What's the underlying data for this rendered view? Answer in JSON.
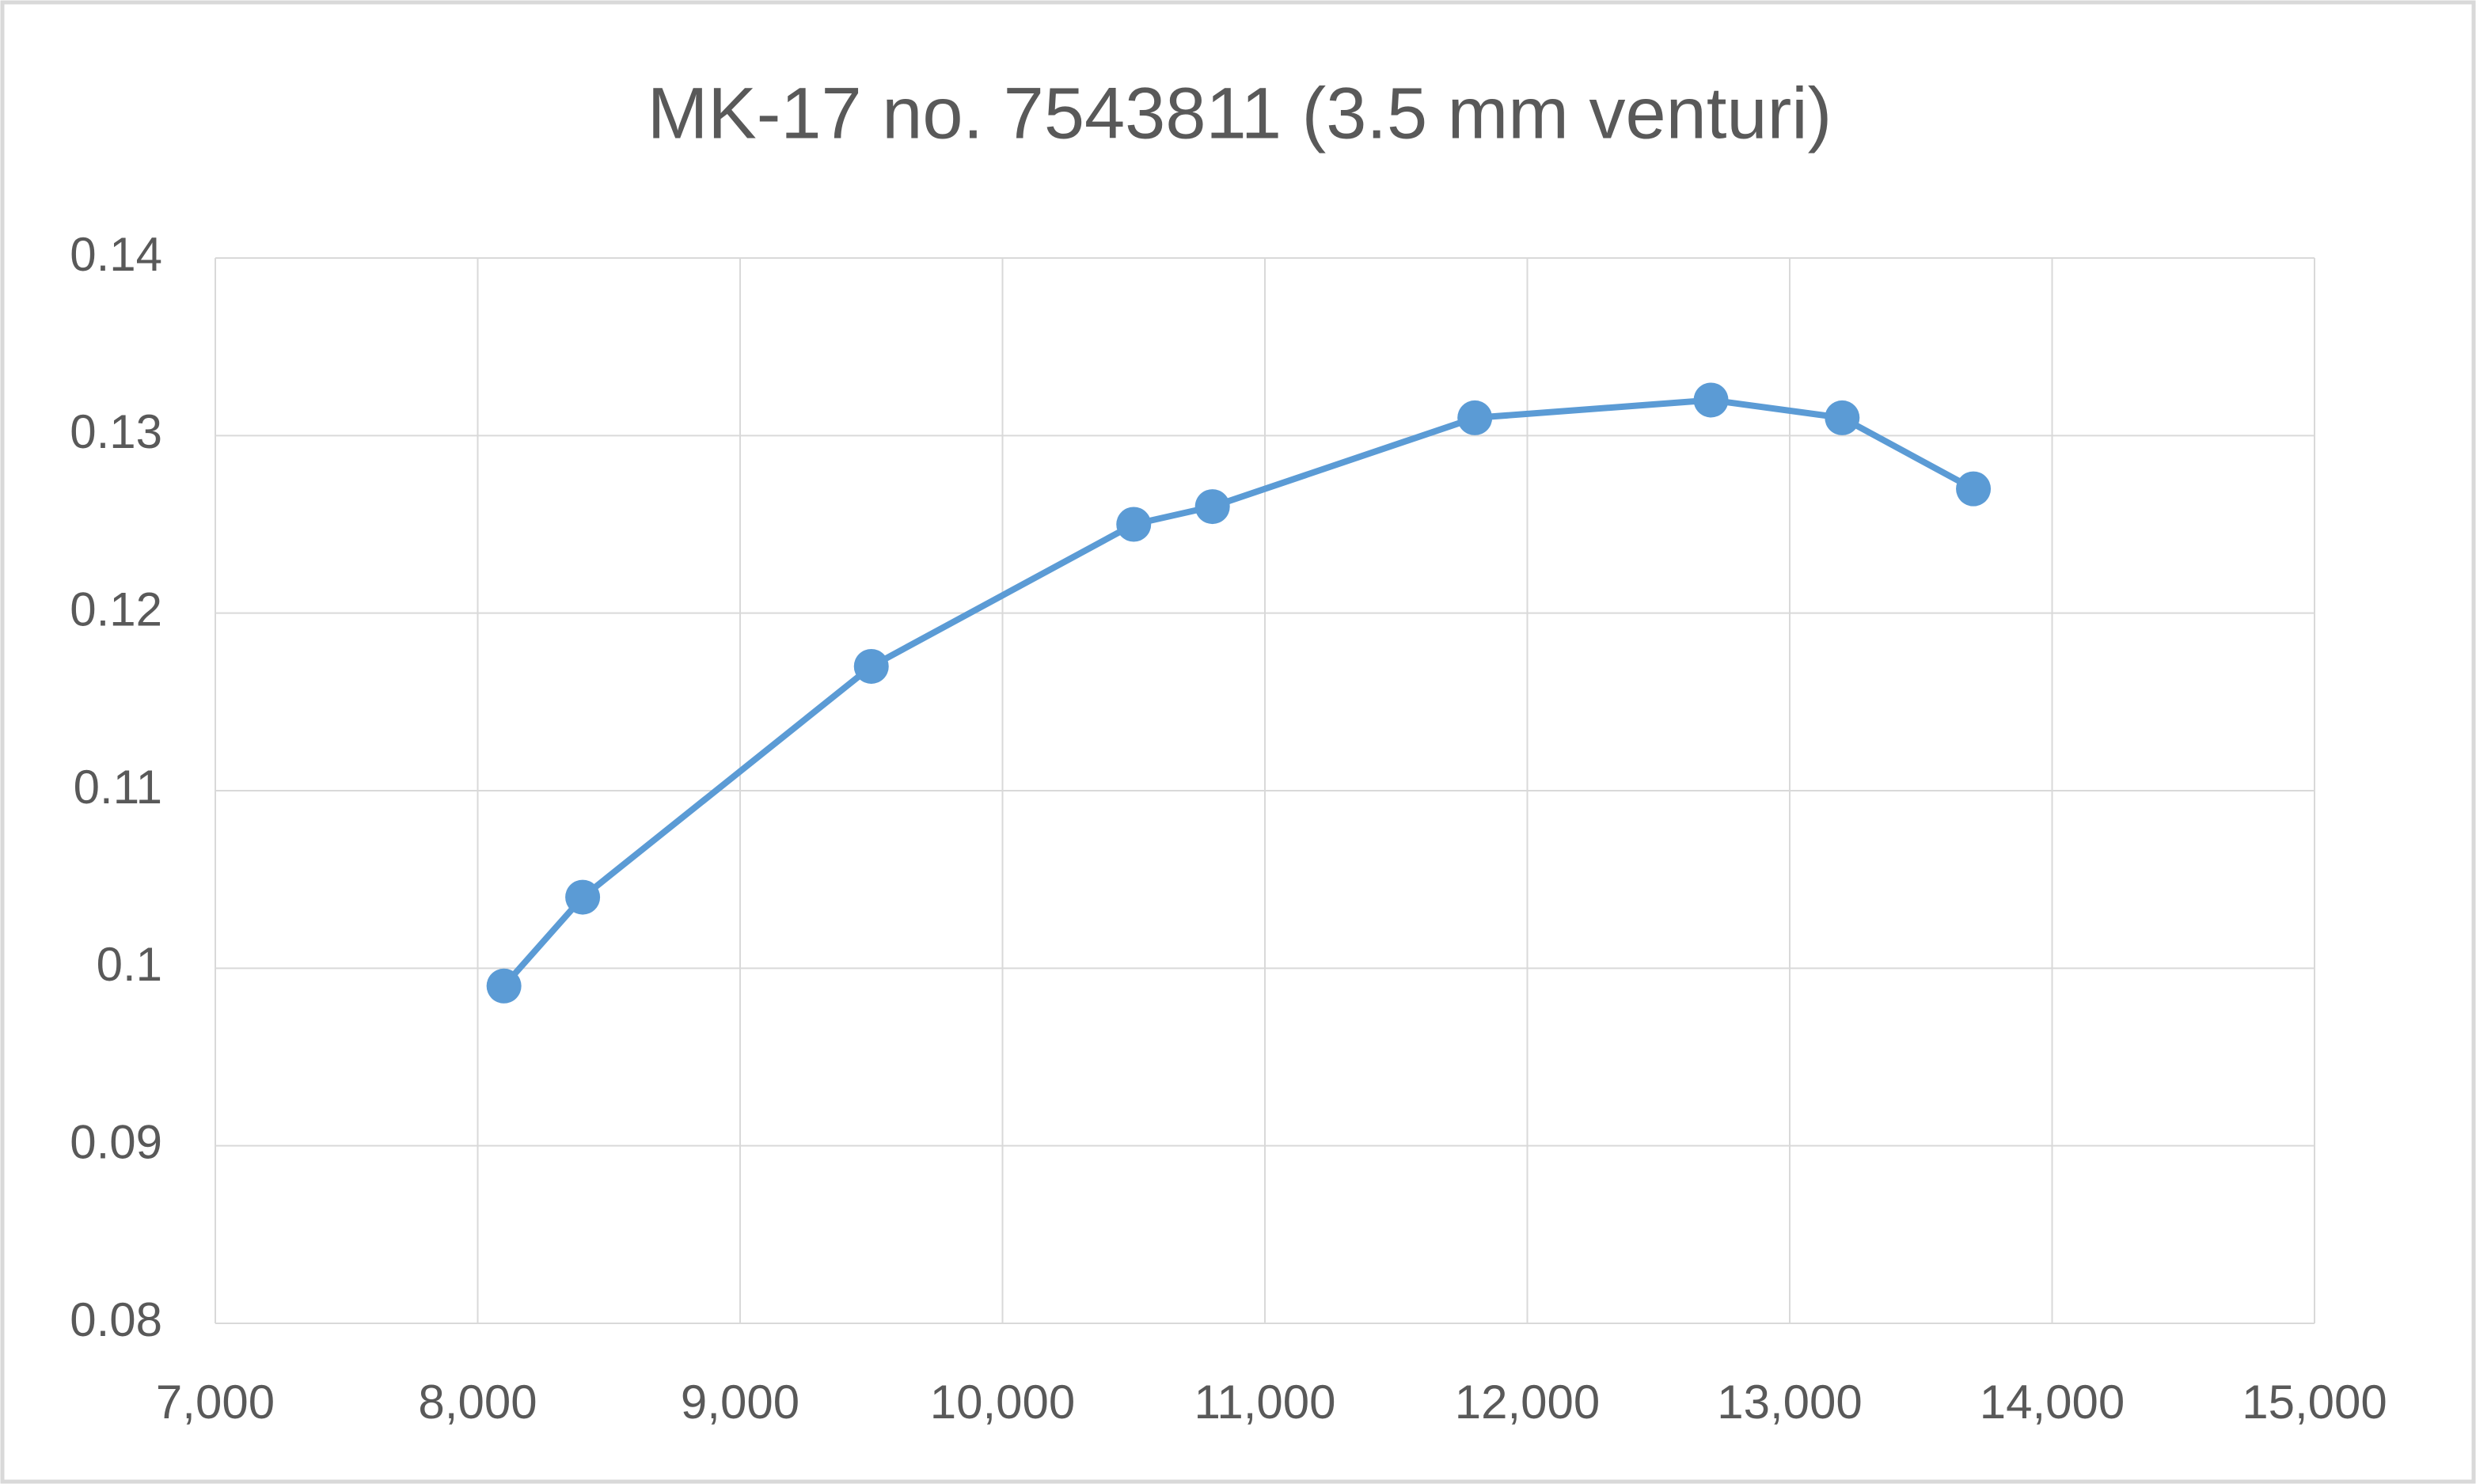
{
  "chart_data": {
    "type": "line",
    "title": "MK-17 no. 7543811 (3.5 mm venturi)",
    "x": [
      8100,
      8400,
      9500,
      10500,
      10800,
      11800,
      12700,
      13200,
      13700
    ],
    "values": [
      0.099,
      0.104,
      0.117,
      0.125,
      0.126,
      0.131,
      0.132,
      0.131,
      0.127
    ],
    "color": "#5b9bd5",
    "xlim": [
      7000,
      15000
    ],
    "xticks": [
      {
        "value": 7000,
        "label": "7,000"
      },
      {
        "value": 8000,
        "label": "8,000"
      },
      {
        "value": 9000,
        "label": "9,000"
      },
      {
        "value": 10000,
        "label": "10,000"
      },
      {
        "value": 11000,
        "label": "11,000"
      },
      {
        "value": 12000,
        "label": "12,000"
      },
      {
        "value": 13000,
        "label": "13,000"
      },
      {
        "value": 14000,
        "label": "14,000"
      },
      {
        "value": 15000,
        "label": "15,000"
      }
    ],
    "ylim": [
      0.08,
      0.14
    ],
    "yticks": [
      0.08,
      0.09,
      0.1,
      0.11,
      0.12,
      0.13,
      0.14
    ],
    "grid": true
  }
}
